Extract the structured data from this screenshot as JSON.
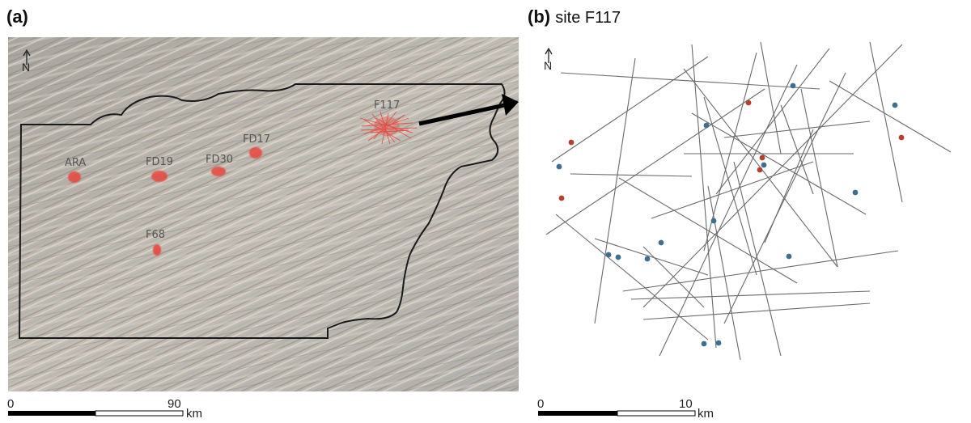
{
  "panel_a": {
    "label": "(a)",
    "north_label": "N",
    "sites": [
      {
        "name": "ARA"
      },
      {
        "name": "FD19"
      },
      {
        "name": "FD30"
      },
      {
        "name": "FD17"
      },
      {
        "name": "F117"
      },
      {
        "name": "F68"
      }
    ],
    "scale": {
      "start": "0",
      "end": "90",
      "unit": "km"
    }
  },
  "panel_b": {
    "label": "(b)",
    "subtitle": "site F117",
    "north_label": "N",
    "scale": {
      "start": "0",
      "end": "10",
      "unit": "km"
    }
  },
  "colors": {
    "site_marker": "#e8463c",
    "blue_station": "#3f6f8f",
    "red_station": "#b3412e",
    "boundary": "#1a1a1a",
    "profile_line": "#555555"
  }
}
